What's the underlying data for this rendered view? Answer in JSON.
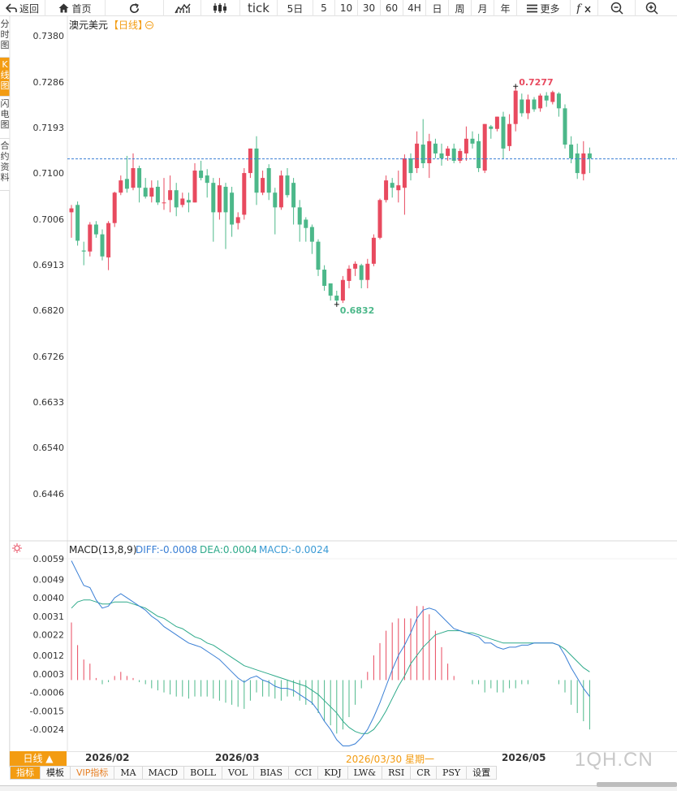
{
  "toolbar": {
    "back": "返回",
    "home": "首页",
    "tick": "tick",
    "periods": [
      "5日",
      "5",
      "10",
      "30",
      "60",
      "4H",
      "日",
      "周",
      "月",
      "年"
    ],
    "more": "更多"
  },
  "sidetabs": [
    "分时图",
    "K线图",
    "闪电图",
    "合约资料"
  ],
  "header": {
    "symbol": "澳元美元",
    "period_tag": "【日线】",
    "macd_label": "MACD(13,8,9)",
    "diff": "DIFF:-0.0008",
    "dea": "DEA:0.0004",
    "macd": "MACD:-0.0024"
  },
  "colors": {
    "up": "#e84a5f",
    "down": "#4cb88a",
    "diff_line": "#3a7fd5",
    "dea_line": "#2eaa8a",
    "accent": "#f39c12",
    "ref_line": "#3a7fd5"
  },
  "bottom": {
    "ktype_btn": "日线 ▲",
    "dates": [
      "2026/02",
      "2026/03",
      "2026/03/30 星期一",
      "2026/05"
    ],
    "indicators": [
      "指标",
      "模板",
      "VIP指标",
      "MA",
      "MACD",
      "BOLL",
      "VOL",
      "BIAS",
      "CCI",
      "KDJ",
      "LW&",
      "RSI",
      "CR",
      "PSY",
      "设置"
    ],
    "watermark": "1QH.CN"
  },
  "chart_data": {
    "type": "candlestick",
    "title": "澳元美元【日线】",
    "price_axis": {
      "ticks": [
        "0.7380",
        "0.7286",
        "0.7193",
        "0.7100",
        "0.7006",
        "0.6913",
        "0.6820",
        "0.6726",
        "0.6633",
        "0.6540",
        "0.6446"
      ],
      "ylim": [
        0.6446,
        0.738
      ]
    },
    "reference_line": 0.7129,
    "high_mark": "0.7277",
    "low_mark": "0.6832",
    "candles": [
      [
        0.702,
        0.7028,
        0.6968,
        0.7035
      ],
      [
        0.7035,
        0.6962,
        0.6952,
        0.7042
      ],
      [
        0.6942,
        0.694,
        0.6912,
        0.696
      ],
      [
        0.694,
        0.6995,
        0.693,
        0.7
      ],
      [
        0.6995,
        0.6975,
        0.6968,
        0.7002
      ],
      [
        0.6975,
        0.693,
        0.6922,
        0.6985
      ],
      [
        0.6928,
        0.6998,
        0.6902,
        0.7002
      ],
      [
        0.6998,
        0.706,
        0.699,
        0.7062
      ],
      [
        0.706,
        0.7085,
        0.7055,
        0.7095
      ],
      [
        0.7088,
        0.7068,
        0.706,
        0.7135
      ],
      [
        0.707,
        0.711,
        0.7065,
        0.714
      ],
      [
        0.711,
        0.707,
        0.704,
        0.7115
      ],
      [
        0.707,
        0.7052,
        0.7048,
        0.709
      ],
      [
        0.7052,
        0.707,
        0.704,
        0.7085
      ],
      [
        0.7072,
        0.704,
        0.7035,
        0.7085
      ],
      [
        0.704,
        0.704,
        0.7025,
        0.709
      ],
      [
        0.7045,
        0.7065,
        0.702,
        0.7095
      ],
      [
        0.7065,
        0.703,
        0.7012,
        0.708
      ],
      [
        0.7035,
        0.7048,
        0.703,
        0.706
      ],
      [
        0.7045,
        0.704,
        0.702,
        0.706
      ],
      [
        0.704,
        0.7105,
        0.704,
        0.712
      ],
      [
        0.7105,
        0.709,
        0.7085,
        0.7125
      ],
      [
        0.7095,
        0.708,
        0.705,
        0.7108
      ],
      [
        0.708,
        0.702,
        0.696,
        0.709
      ],
      [
        0.702,
        0.7075,
        0.7005,
        0.709
      ],
      [
        0.7072,
        0.702,
        0.6945,
        0.708
      ],
      [
        0.706,
        0.6995,
        0.697,
        0.7072
      ],
      [
        0.6998,
        0.701,
        0.6985,
        0.702
      ],
      [
        0.7015,
        0.71,
        0.7005,
        0.711
      ],
      [
        0.71,
        0.715,
        0.709,
        0.715
      ],
      [
        0.715,
        0.706,
        0.7035,
        0.7175
      ],
      [
        0.706,
        0.709,
        0.7055,
        0.7105
      ],
      [
        0.711,
        0.706,
        0.7045,
        0.7118
      ],
      [
        0.706,
        0.703,
        0.6975,
        0.707
      ],
      [
        0.703,
        0.7095,
        0.7025,
        0.7105
      ],
      [
        0.7095,
        0.7055,
        0.705,
        0.711
      ],
      [
        0.708,
        0.703,
        0.6995,
        0.709
      ],
      [
        0.703,
        0.6995,
        0.696,
        0.7045
      ],
      [
        0.7005,
        0.6988,
        0.696,
        0.701
      ],
      [
        0.699,
        0.696,
        0.6935,
        0.6995
      ],
      [
        0.696,
        0.6903,
        0.689,
        0.6965
      ],
      [
        0.6903,
        0.687,
        0.686,
        0.6912
      ],
      [
        0.6875,
        0.685,
        0.684,
        0.6875
      ],
      [
        0.685,
        0.684,
        0.6832,
        0.686
      ],
      [
        0.684,
        0.6882,
        0.6835,
        0.689
      ],
      [
        0.688,
        0.6905,
        0.6865,
        0.6912
      ],
      [
        0.6905,
        0.6915,
        0.689,
        0.692
      ],
      [
        0.6912,
        0.6882,
        0.6865,
        0.6915
      ],
      [
        0.6882,
        0.6915,
        0.6865,
        0.6925
      ],
      [
        0.6915,
        0.6968,
        0.691,
        0.6975
      ],
      [
        0.6968,
        0.7045,
        0.6965,
        0.7048
      ],
      [
        0.7045,
        0.7085,
        0.704,
        0.7095
      ],
      [
        0.708,
        0.707,
        0.705,
        0.709
      ],
      [
        0.7065,
        0.7075,
        0.704,
        0.7105
      ],
      [
        0.707,
        0.713,
        0.7015,
        0.7138
      ],
      [
        0.713,
        0.71,
        0.7085,
        0.714
      ],
      [
        0.711,
        0.716,
        0.71,
        0.7185
      ],
      [
        0.7158,
        0.712,
        0.711,
        0.721
      ],
      [
        0.712,
        0.7165,
        0.709,
        0.718
      ],
      [
        0.716,
        0.714,
        0.713,
        0.717
      ],
      [
        0.714,
        0.713,
        0.7115,
        0.716
      ],
      [
        0.7135,
        0.715,
        0.7125,
        0.7155
      ],
      [
        0.715,
        0.7125,
        0.712,
        0.716
      ],
      [
        0.7125,
        0.7145,
        0.712,
        0.715
      ],
      [
        0.714,
        0.717,
        0.7125,
        0.7195
      ],
      [
        0.717,
        0.716,
        0.715,
        0.7185
      ],
      [
        0.7165,
        0.711,
        0.7102,
        0.718
      ],
      [
        0.7105,
        0.72,
        0.71,
        0.72
      ],
      [
        0.7195,
        0.719,
        0.717,
        0.7198
      ],
      [
        0.719,
        0.7215,
        0.7185,
        0.7215
      ],
      [
        0.7215,
        0.715,
        0.713,
        0.7225
      ],
      [
        0.7155,
        0.72,
        0.7145,
        0.722
      ],
      [
        0.72,
        0.7268,
        0.7185,
        0.7277
      ],
      [
        0.725,
        0.7222,
        0.7215,
        0.7262
      ],
      [
        0.7222,
        0.725,
        0.721,
        0.726
      ],
      [
        0.725,
        0.723,
        0.7225,
        0.7255
      ],
      [
        0.7232,
        0.7258,
        0.7225,
        0.7262
      ],
      [
        0.7258,
        0.7248,
        0.7235,
        0.7265
      ],
      [
        0.7245,
        0.7265,
        0.724,
        0.7268
      ],
      [
        0.7262,
        0.7232,
        0.7215,
        0.7265
      ],
      [
        0.7232,
        0.7158,
        0.715,
        0.724
      ],
      [
        0.7158,
        0.713,
        0.712,
        0.7175
      ],
      [
        0.714,
        0.71,
        0.7088,
        0.716
      ],
      [
        0.7098,
        0.714,
        0.7085,
        0.7165
      ],
      [
        0.714,
        0.713,
        0.71,
        0.7152
      ]
    ],
    "macd_panel": {
      "ticks": [
        "0.0059",
        "0.0049",
        "0.0040",
        "0.0031",
        "0.0022",
        "0.0012",
        "0.0003",
        "-0.0006",
        "-0.0015",
        "-0.0024"
      ],
      "ylim": [
        -0.0033,
        0.0059
      ],
      "diff": [
        0.0058,
        0.0052,
        0.0046,
        0.0045,
        0.0039,
        0.0035,
        0.0036,
        0.004,
        0.0042,
        0.004,
        0.0038,
        0.0036,
        0.0034,
        0.0031,
        0.0029,
        0.0026,
        0.0024,
        0.0022,
        0.002,
        0.0018,
        0.0017,
        0.0016,
        0.0014,
        0.0012,
        0.001,
        0.0007,
        0.0004,
        0.0001,
        -0.0001,
        0.0001,
        0.0002,
        0.0,
        -0.0001,
        -0.0003,
        -0.0004,
        -0.0004,
        -0.0005,
        -0.0007,
        -0.0009,
        -0.0011,
        -0.0015,
        -0.002,
        -0.0024,
        -0.0029,
        -0.0032,
        -0.0032,
        -0.0031,
        -0.0028,
        -0.0024,
        -0.0018,
        -0.0011,
        -0.0003,
        0.0005,
        0.0012,
        0.0017,
        0.0023,
        0.003,
        0.0034,
        0.0035,
        0.0034,
        0.0031,
        0.0028,
        0.0025,
        0.0024,
        0.0023,
        0.0022,
        0.0021,
        0.0018,
        0.0018,
        0.0016,
        0.0015,
        0.0016,
        0.0016,
        0.0017,
        0.0017,
        0.0018,
        0.0018,
        0.0018,
        0.0018,
        0.0017,
        0.0012,
        0.0006,
        0.0001,
        -0.0004,
        -0.0008
      ],
      "dea": [
        0.0035,
        0.0038,
        0.0039,
        0.0039,
        0.0038,
        0.0037,
        0.0037,
        0.0038,
        0.0038,
        0.0038,
        0.0037,
        0.0036,
        0.0035,
        0.0033,
        0.0031,
        0.003,
        0.0028,
        0.0026,
        0.0025,
        0.0023,
        0.0021,
        0.002,
        0.0018,
        0.0017,
        0.0015,
        0.0013,
        0.0011,
        0.0009,
        0.0007,
        0.0006,
        0.0005,
        0.0004,
        0.0003,
        0.0002,
        0.0001,
        0.0,
        -0.0001,
        -0.0002,
        -0.0003,
        -0.0005,
        -0.0007,
        -0.001,
        -0.0013,
        -0.0016,
        -0.002,
        -0.0023,
        -0.0025,
        -0.0026,
        -0.0026,
        -0.0024,
        -0.002,
        -0.0015,
        -0.0009,
        -0.0003,
        0.0002,
        0.0008,
        0.0012,
        0.0016,
        0.0019,
        0.0022,
        0.0023,
        0.0024,
        0.0024,
        0.0024,
        0.0023,
        0.0023,
        0.0022,
        0.0021,
        0.002,
        0.0019,
        0.0018,
        0.0018,
        0.0018,
        0.0018,
        0.0018,
        0.0018,
        0.0018,
        0.0018,
        0.0018,
        0.0017,
        0.0015,
        0.0012,
        0.0009,
        0.0006,
        0.0004
      ],
      "macd_hist": [
        0.0028,
        0.0017,
        0.001,
        0.0008,
        0.0001,
        -0.0002,
        -0.0001,
        0.0002,
        0.0004,
        0.0002,
        0.0001,
        -0.0001,
        -0.0002,
        -0.0004,
        -0.0005,
        -0.0006,
        -0.0007,
        -0.0008,
        -0.0008,
        -0.0009,
        -0.0008,
        -0.0008,
        -0.0008,
        -0.0009,
        -0.001,
        -0.0011,
        -0.0012,
        -0.0013,
        -0.0014,
        -0.001,
        -0.0006,
        -0.0008,
        -0.0008,
        -0.0009,
        -0.001,
        -0.0008,
        -0.0008,
        -0.001,
        -0.0012,
        -0.0012,
        -0.0016,
        -0.002,
        -0.0022,
        -0.0026,
        -0.0024,
        -0.0018,
        -0.0012,
        -0.0004,
        0.0004,
        0.0012,
        0.0018,
        0.0024,
        0.0028,
        0.003,
        0.003,
        0.003,
        0.0036,
        0.0036,
        0.0032,
        0.0024,
        0.0016,
        0.0008,
        0.0002,
        0.0,
        0.0,
        -0.0002,
        -0.0002,
        -0.0006,
        -0.0004,
        -0.0006,
        -0.0006,
        -0.0004,
        -0.0004,
        -0.0002,
        -0.0002,
        0.0,
        0.0,
        0.0,
        0.0,
        -0.0002,
        -0.0006,
        -0.0012,
        -0.0016,
        -0.002,
        -0.0024
      ]
    }
  }
}
